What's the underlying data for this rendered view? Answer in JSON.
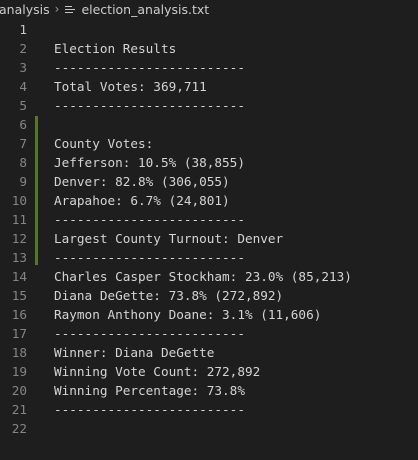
{
  "breadcrumb": {
    "folder": "analysis",
    "file_icon": "text-file-icon",
    "file": "election_analysis.txt"
  },
  "editor": {
    "lines": [
      {
        "num": "1",
        "text": ""
      },
      {
        "num": "2",
        "text": "Election Results"
      },
      {
        "num": "3",
        "text": "-------------------------"
      },
      {
        "num": "4",
        "text": "Total Votes: 369,711"
      },
      {
        "num": "5",
        "text": "-------------------------"
      },
      {
        "num": "6",
        "text": ""
      },
      {
        "num": "7",
        "text": "County Votes:"
      },
      {
        "num": "8",
        "text": "Jefferson: 10.5% (38,855)"
      },
      {
        "num": "9",
        "text": "Denver: 82.8% (306,055)"
      },
      {
        "num": "10",
        "text": "Arapahoe: 6.7% (24,801)"
      },
      {
        "num": "11",
        "text": "-------------------------"
      },
      {
        "num": "12",
        "text": "Largest County Turnout: Denver"
      },
      {
        "num": "13",
        "text": "-------------------------"
      },
      {
        "num": "14",
        "text": "Charles Casper Stockham: 23.0% (85,213)"
      },
      {
        "num": "15",
        "text": "Diana DeGette: 73.8% (272,892)"
      },
      {
        "num": "16",
        "text": "Raymon Anthony Doane: 3.1% (11,606)"
      },
      {
        "num": "17",
        "text": "-------------------------"
      },
      {
        "num": "18",
        "text": "Winner: Diana DeGette"
      },
      {
        "num": "19",
        "text": "Winning Vote Count: 272,892"
      },
      {
        "num": "20",
        "text": "Winning Percentage: 73.8%"
      },
      {
        "num": "21",
        "text": "-------------------------"
      },
      {
        "num": "22",
        "text": ""
      }
    ]
  },
  "colors": {
    "background": "#1e1e1e",
    "text": "#d4d4d4",
    "line_number": "#858585",
    "active_line_number": "#c6c6c6",
    "modified_gutter": "#587c0c"
  }
}
